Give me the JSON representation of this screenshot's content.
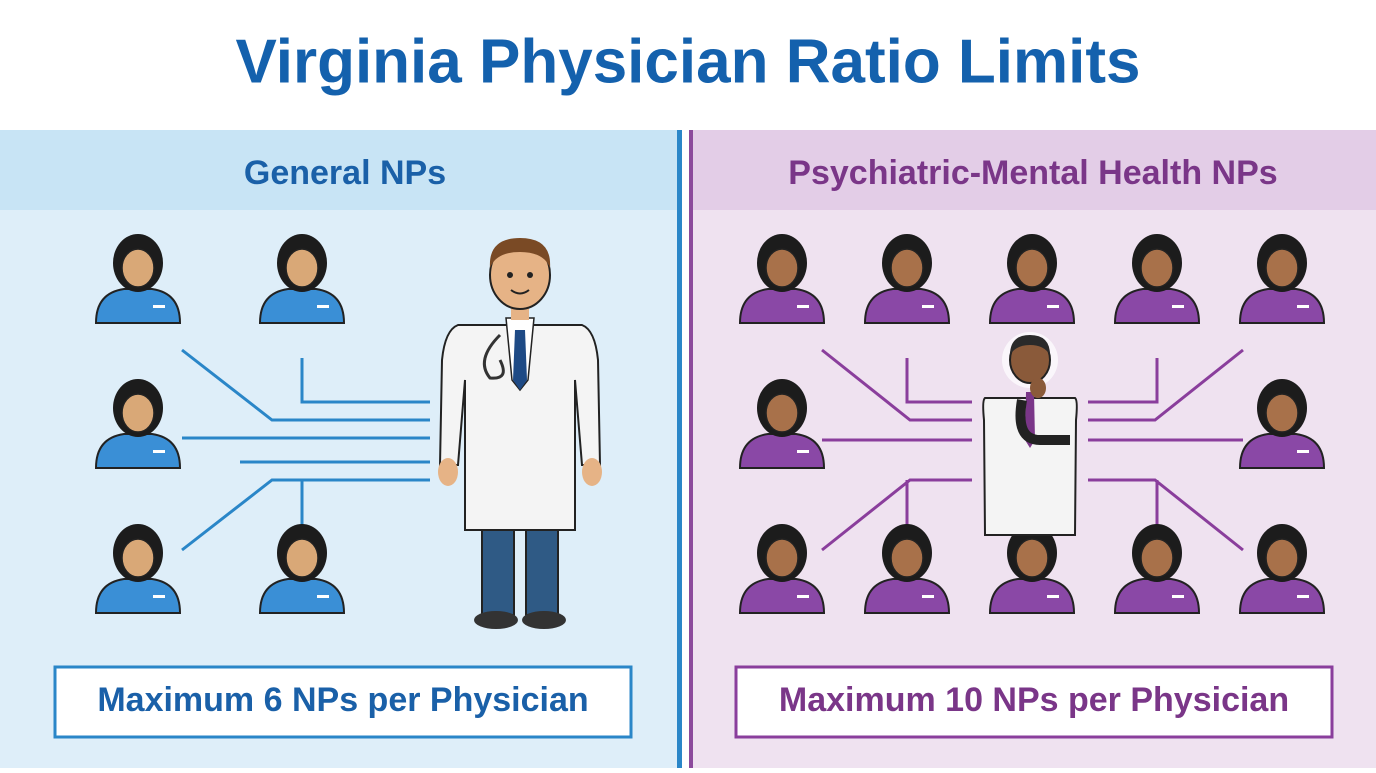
{
  "header": {
    "title": "Virginia Physician Ratio Limits"
  },
  "panels": [
    {
      "heading": "General NPs",
      "caption": "Maximum 6 NPs per Physician"
    },
    {
      "heading": "Psychiatric-Mental Health NPs",
      "caption": "Maximum 10 NPs per Physician"
    }
  ]
}
